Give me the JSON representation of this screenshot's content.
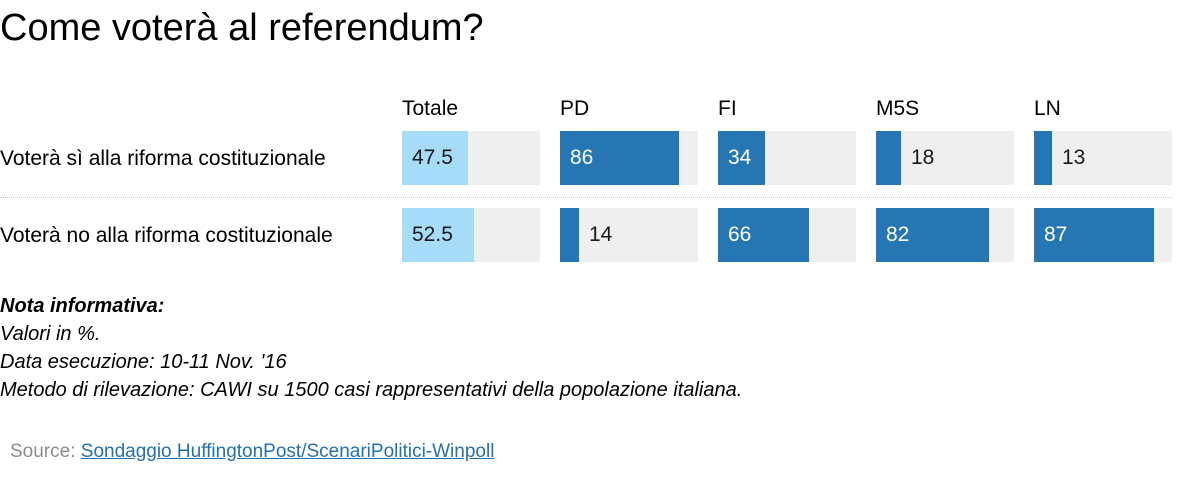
{
  "title": "Come voterà al referendum?",
  "colors": {
    "total_fill": "#a6dcf7",
    "party_fill": "#2676b4",
    "cell_background": "#efefef",
    "label_on_dark": "#ffffff",
    "label_on_light": "#1a1a1a"
  },
  "chart_data": {
    "type": "bar",
    "categories": [
      "Totale",
      "PD",
      "FI",
      "M5S",
      "LN"
    ],
    "series": [
      {
        "name": "Voterà sì alla riforma costituzionale",
        "values": [
          47.5,
          86,
          34,
          18,
          13
        ]
      },
      {
        "name": "Voterà no alla riforma costituzionale",
        "values": [
          52.5,
          14,
          66,
          82,
          87
        ]
      }
    ],
    "value_labels": [
      [
        "47.5",
        "86",
        "34",
        "18",
        "13"
      ],
      [
        "52.5",
        "14",
        "66",
        "82",
        "87"
      ]
    ],
    "ylim": [
      0,
      100
    ]
  },
  "notes": {
    "heading": "Nota informativa:",
    "lines": [
      "Valori in %.",
      "Data esecuzione: 10-11 Nov. '16",
      "Metodo di rilevazione: CAWI su 1500 casi rappresentativi della popolazione italiana."
    ]
  },
  "source": {
    "prefix": "Source:",
    "link_text": "Sondaggio HuffingtonPost/ScenariPolitici-Winpoll"
  }
}
